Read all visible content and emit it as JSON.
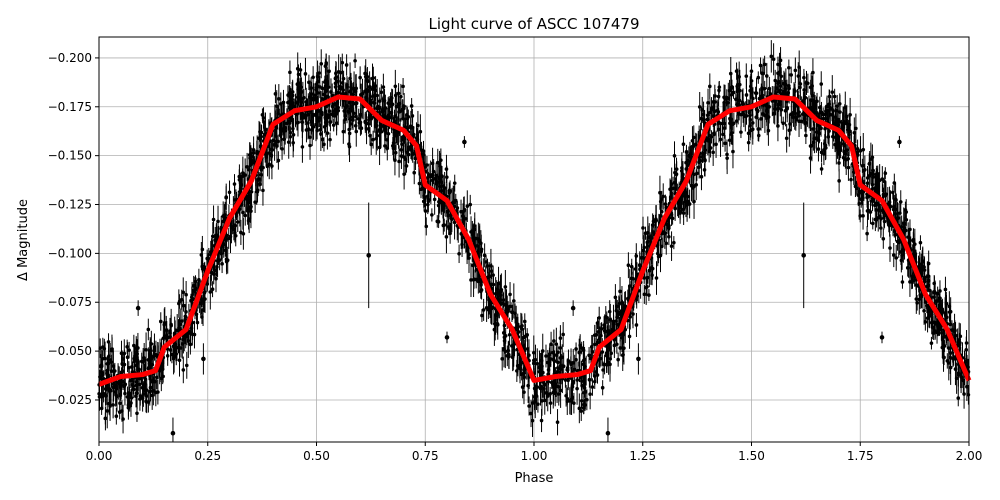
{
  "chart_data": {
    "type": "scatter",
    "title": "Light curve of ASCC 107479",
    "xlabel": "Phase",
    "ylabel": "Δ Magnitude",
    "xlim": [
      0.0,
      2.0
    ],
    "ylim": [
      -0.0035,
      -0.2107
    ],
    "y_inverted": true,
    "grid": true,
    "x_ticks": [
      "0.00",
      "0.25",
      "0.50",
      "0.75",
      "1.00",
      "1.25",
      "1.50",
      "1.75",
      "2.00"
    ],
    "y_ticks": [
      "−0.200",
      "−0.175",
      "−0.150",
      "−0.125",
      "−0.100",
      "−0.075",
      "−0.050",
      "−0.025"
    ],
    "colors": {
      "observations": "#000000",
      "model": "#ff0000"
    },
    "series": [
      {
        "role": "model",
        "x": [
          0.0,
          0.05,
          0.1,
          0.13,
          0.15,
          0.2,
          0.25,
          0.3,
          0.35,
          0.4,
          0.45,
          0.5,
          0.55,
          0.6,
          0.65,
          0.7,
          0.73,
          0.75,
          0.8,
          0.85,
          0.9,
          0.95,
          1.0,
          1.05,
          1.1,
          1.13,
          1.15,
          1.2,
          1.25,
          1.3,
          1.35,
          1.4,
          1.45,
          1.5,
          1.55,
          1.6,
          1.65,
          1.7,
          1.73,
          1.75,
          1.8,
          1.85,
          1.9,
          1.95,
          2.0
        ],
        "y": [
          -0.033,
          -0.037,
          -0.038,
          -0.04,
          -0.052,
          -0.061,
          -0.091,
          -0.118,
          -0.137,
          -0.166,
          -0.173,
          -0.175,
          -0.18,
          -0.179,
          -0.168,
          -0.163,
          -0.155,
          -0.135,
          -0.127,
          -0.107,
          -0.079,
          -0.061,
          -0.035,
          -0.037,
          -0.038,
          -0.04,
          -0.052,
          -0.061,
          -0.091,
          -0.118,
          -0.137,
          -0.166,
          -0.173,
          -0.175,
          -0.18,
          -0.179,
          -0.168,
          -0.163,
          -0.155,
          -0.135,
          -0.127,
          -0.107,
          -0.079,
          -0.061,
          -0.035
        ]
      },
      {
        "role": "observations-outliers",
        "points": [
          {
            "x": 0.62,
            "y": -0.099,
            "err": 0.027
          },
          {
            "x": 1.62,
            "y": -0.099,
            "err": 0.027
          },
          {
            "x": 0.09,
            "y": -0.072,
            "err": 0.004
          },
          {
            "x": 1.09,
            "y": -0.072,
            "err": 0.004
          },
          {
            "x": 0.84,
            "y": -0.157,
            "err": 0.003
          },
          {
            "x": 1.84,
            "y": -0.157,
            "err": 0.003
          },
          {
            "x": 0.8,
            "y": -0.057,
            "err": 0.003
          },
          {
            "x": 1.8,
            "y": -0.057,
            "err": 0.003
          },
          {
            "x": 0.17,
            "y": -0.008,
            "err": 0.008
          },
          {
            "x": 1.17,
            "y": -0.008,
            "err": 0.008
          },
          {
            "x": 0.24,
            "y": -0.046,
            "err": 0.008
          },
          {
            "x": 1.24,
            "y": -0.046,
            "err": 0.008
          }
        ]
      }
    ]
  }
}
